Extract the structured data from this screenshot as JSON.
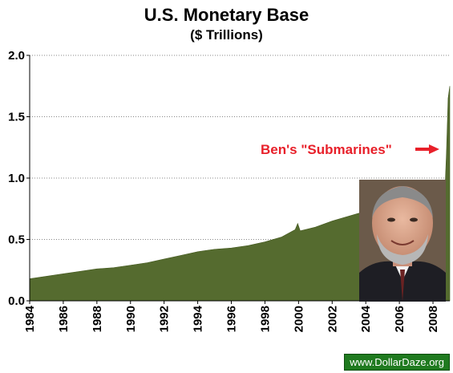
{
  "chart_data": {
    "type": "area",
    "title": "U.S. Monetary Base",
    "subtitle": "($ Trillions)",
    "xlabel": "",
    "ylabel": "",
    "ylim": [
      0,
      2.0
    ],
    "xlim": [
      1984,
      2009
    ],
    "yticks": [
      "0.0",
      "0.5",
      "1.0",
      "1.5",
      "2.0"
    ],
    "xticks": [
      "1984",
      "1986",
      "1988",
      "1990",
      "1992",
      "1994",
      "1996",
      "1998",
      "2000",
      "2002",
      "2004",
      "2006",
      "2008"
    ],
    "grid": true,
    "color": "#556b2f",
    "series": [
      {
        "x": [
          1984,
          1985,
          1986,
          1987,
          1988,
          1989,
          1990,
          1991,
          1992,
          1993,
          1994,
          1995,
          1996,
          1997,
          1998,
          1999,
          1999.8,
          1999.95,
          2000.1,
          2001,
          2002,
          2003,
          2004,
          2005,
          2006,
          2007,
          2008,
          2008.7,
          2008.8,
          2008.9,
          2009
        ],
        "y": [
          0.18,
          0.2,
          0.22,
          0.24,
          0.26,
          0.27,
          0.29,
          0.31,
          0.34,
          0.37,
          0.4,
          0.42,
          0.43,
          0.45,
          0.48,
          0.52,
          0.58,
          0.63,
          0.57,
          0.6,
          0.65,
          0.69,
          0.73,
          0.77,
          0.8,
          0.82,
          0.84,
          0.86,
          1.2,
          1.65,
          1.75
        ]
      }
    ],
    "annotation": "Ben's \"Submarines\""
  },
  "watermark": "www.DollarDaze.org"
}
